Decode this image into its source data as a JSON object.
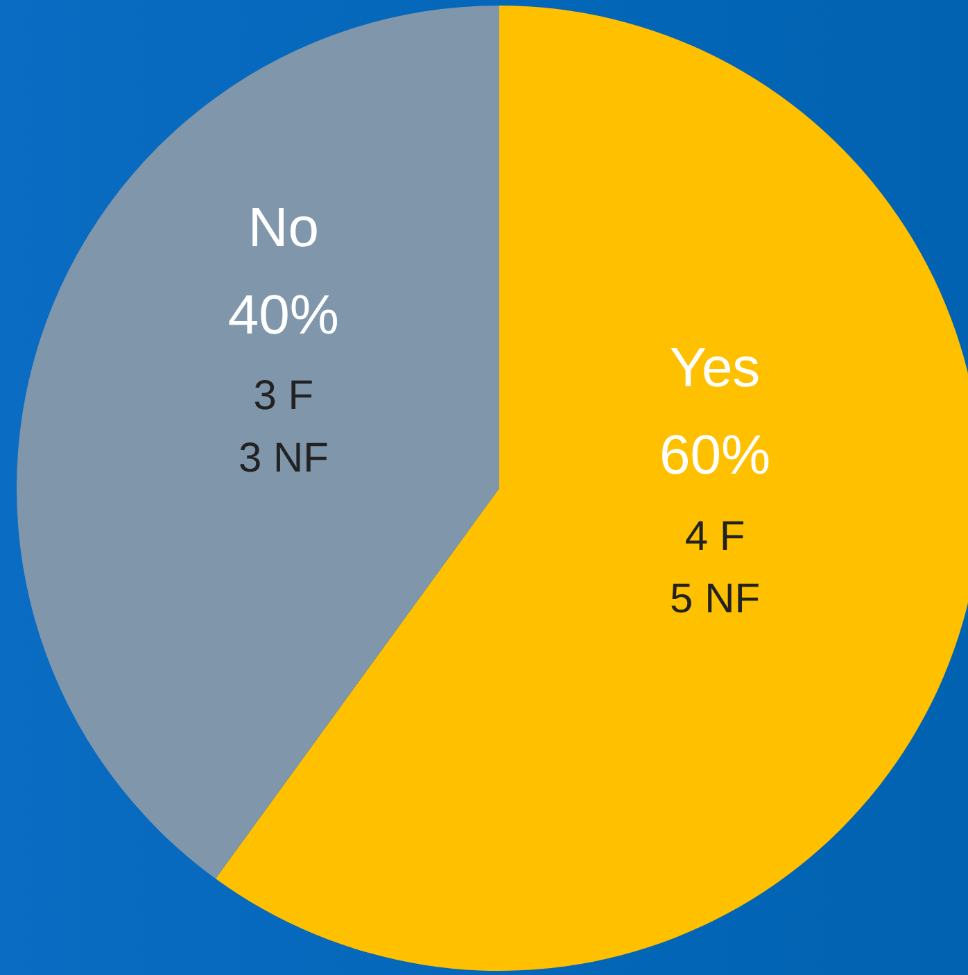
{
  "chart_data": {
    "type": "pie",
    "categories": [
      "Yes",
      "No"
    ],
    "values": [
      60,
      40
    ],
    "colors": [
      "#ffc000",
      "#7f96ab"
    ],
    "value_labels": [
      "60%",
      "40%"
    ],
    "annotations": [
      "4 F\n5 NF",
      "3 F\n3 NF"
    ],
    "legend": false
  }
}
